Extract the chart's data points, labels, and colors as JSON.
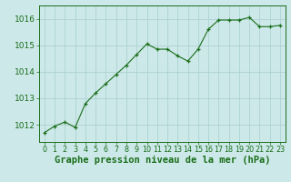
{
  "x": [
    0,
    1,
    2,
    3,
    4,
    5,
    6,
    7,
    8,
    9,
    10,
    11,
    12,
    13,
    14,
    15,
    16,
    17,
    18,
    19,
    20,
    21,
    22,
    23
  ],
  "y": [
    1011.7,
    1011.95,
    1012.1,
    1011.9,
    1012.8,
    1013.2,
    1013.55,
    1013.9,
    1014.25,
    1014.65,
    1015.05,
    1014.85,
    1014.85,
    1014.6,
    1014.4,
    1014.85,
    1015.6,
    1015.95,
    1015.95,
    1015.95,
    1016.05,
    1015.7,
    1015.7,
    1015.75
  ],
  "line_color": "#1a6e1a",
  "marker": "+",
  "bg_color": "#cce8e8",
  "grid_color": "#a8cece",
  "axis_color": "#1a6e1a",
  "xlabel": "Graphe pression niveau de la mer (hPa)",
  "xlabel_fontsize": 7.5,
  "ylabel_ticks": [
    1012,
    1013,
    1014,
    1015,
    1016
  ],
  "xlim": [
    -0.5,
    23.5
  ],
  "ylim": [
    1011.35,
    1016.5
  ],
  "tick_color": "#1a6e1a",
  "tick_fontsize": 6.5,
  "xtick_fontsize": 5.8
}
